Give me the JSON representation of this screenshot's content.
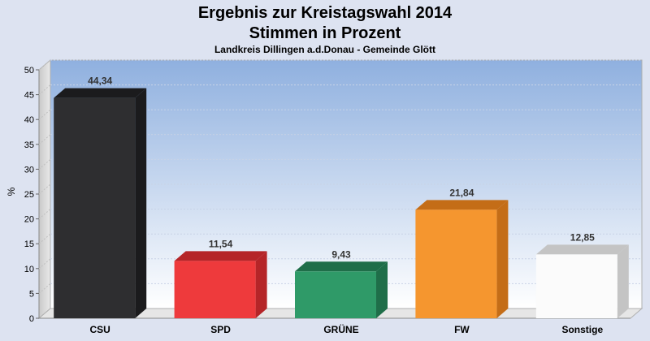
{
  "chart_data": {
    "type": "bar",
    "title": "Ergebnis zur Kreistagswahl 2014",
    "subtitle": "Stimmen in Prozent",
    "note": "Landkreis Dillingen a.d.Donau - Gemeinde Glött",
    "ylabel": "%",
    "xlabel": "",
    "ylim": [
      0,
      50
    ],
    "yticks": [
      0,
      5,
      10,
      15,
      20,
      25,
      30,
      35,
      40,
      45,
      50
    ],
    "grid": true,
    "categories": [
      "CSU",
      "SPD",
      "GRÜNE",
      "FW",
      "Sonstige"
    ],
    "values": [
      44.34,
      11.54,
      9.43,
      21.84,
      12.85
    ],
    "value_labels": [
      "44,34",
      "11,54",
      "9,43",
      "21,84",
      "12,85"
    ],
    "colors": [
      "#2e2e30",
      "#ee3a3c",
      "#2f9a68",
      "#f5962f",
      "#fbfbfb"
    ],
    "side_colors": [
      "#1b1b1d",
      "#b52528",
      "#1f6e49",
      "#c46d17",
      "#c4c4c4"
    ]
  }
}
